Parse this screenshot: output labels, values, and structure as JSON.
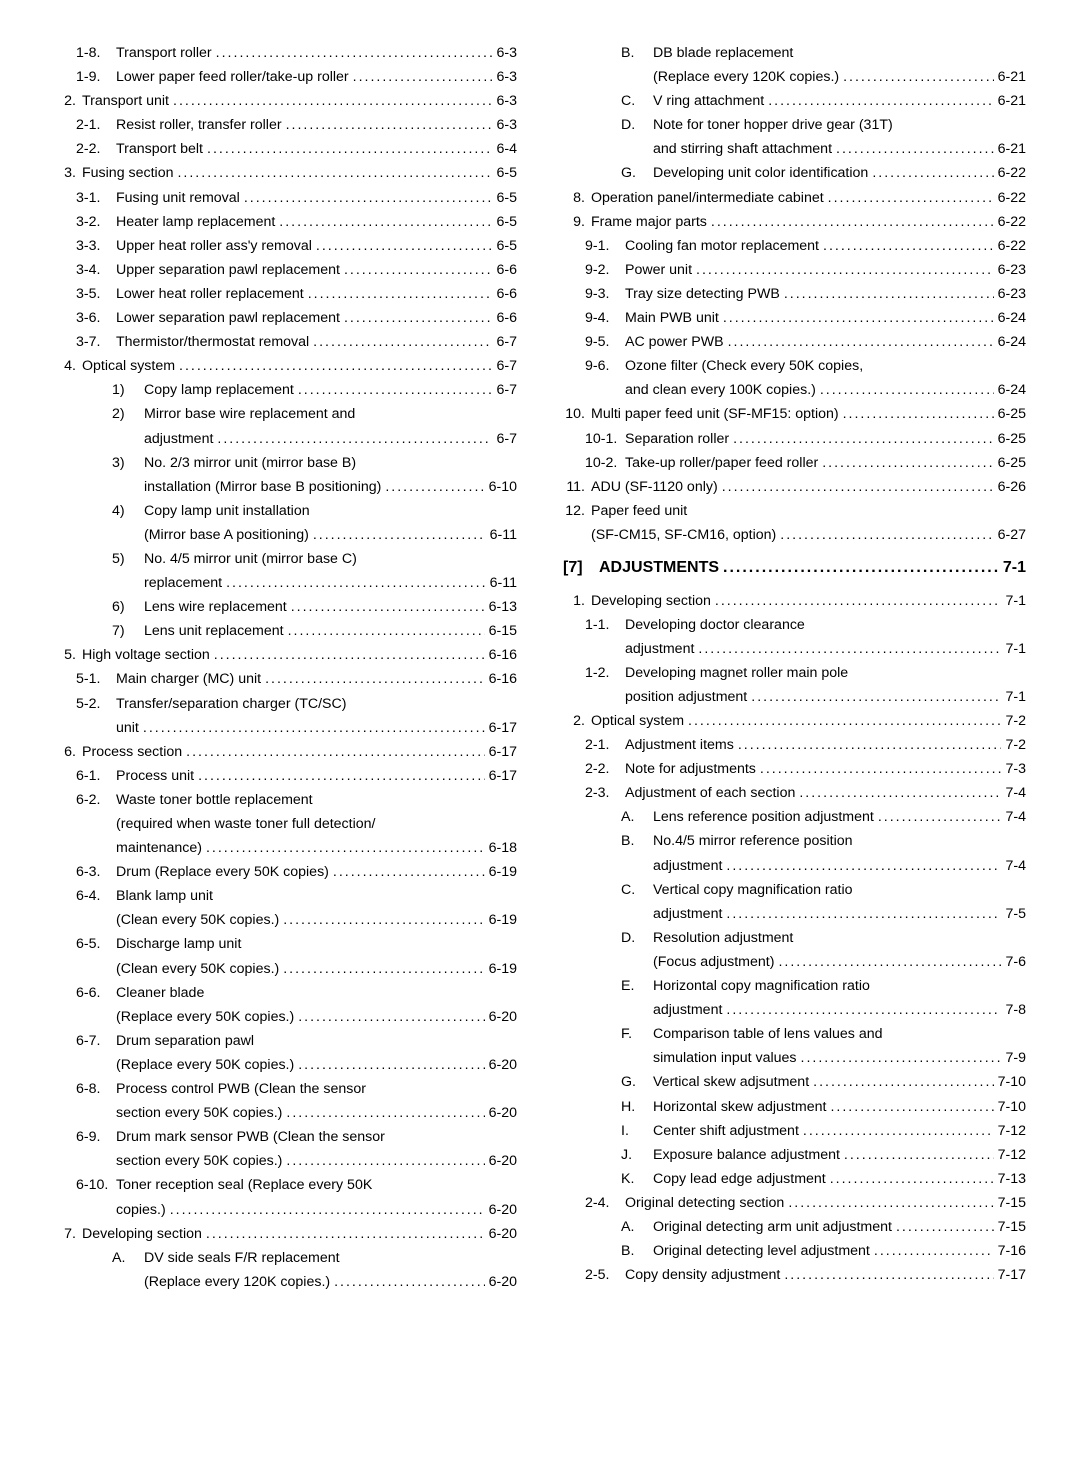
{
  "columns": [
    {
      "rows": [
        {
          "lvl": 1,
          "n": "1-8.",
          "t": "Transport roller",
          "p": "6-3"
        },
        {
          "lvl": 1,
          "n": "1-9.",
          "t": "Lower paper feed roller/take-up roller",
          "p": "6-3"
        },
        {
          "lvl": 0,
          "n": "2.",
          "t": "Transport unit",
          "p": "6-3"
        },
        {
          "lvl": 1,
          "n": "2-1.",
          "t": "Resist roller, transfer roller",
          "p": "6-3"
        },
        {
          "lvl": 1,
          "n": "2-2.",
          "t": "Transport belt",
          "p": "6-4"
        },
        {
          "lvl": 0,
          "n": "3.",
          "t": "Fusing section",
          "p": "6-5"
        },
        {
          "lvl": 1,
          "n": "3-1.",
          "t": "Fusing unit removal",
          "p": "6-5"
        },
        {
          "lvl": 1,
          "n": "3-2.",
          "t": "Heater lamp replacement",
          "p": "6-5"
        },
        {
          "lvl": 1,
          "n": "3-3.",
          "t": "Upper heat roller ass'y removal",
          "p": "6-5"
        },
        {
          "lvl": 1,
          "n": "3-4.",
          "t": "Upper separation pawl replacement",
          "p": "6-6"
        },
        {
          "lvl": 1,
          "n": "3-5.",
          "t": "Lower heat roller replacement",
          "p": "6-6"
        },
        {
          "lvl": 1,
          "n": "3-6.",
          "t": "Lower separation pawl replacement",
          "p": "6-6"
        },
        {
          "lvl": 1,
          "n": "3-7.",
          "t": "Thermistor/thermostat removal",
          "p": "6-7"
        },
        {
          "lvl": 0,
          "n": "4.",
          "t": "Optical system",
          "p": "6-7"
        },
        {
          "lvl": 2,
          "n": "1)",
          "t": "Copy lamp replacement",
          "p": "6-7"
        },
        {
          "lvl": 2,
          "n": "2)",
          "t": "Mirror base wire replacement and"
        },
        {
          "lvl": 2,
          "cont": true,
          "t": "adjustment",
          "p": "6-7"
        },
        {
          "lvl": 2,
          "n": "3)",
          "t": "No. 2/3 mirror unit (mirror base B)"
        },
        {
          "lvl": 2,
          "cont": true,
          "t": "installation (Mirror base B positioning)",
          "p": "6-10"
        },
        {
          "lvl": 2,
          "n": "4)",
          "t": "Copy lamp unit installation"
        },
        {
          "lvl": 2,
          "cont": true,
          "t": "(Mirror base A positioning)",
          "p": "6-11"
        },
        {
          "lvl": 2,
          "n": "5)",
          "t": "No. 4/5 mirror unit (mirror base C)"
        },
        {
          "lvl": 2,
          "cont": true,
          "t": "replacement",
          "p": "6-11"
        },
        {
          "lvl": 2,
          "n": "6)",
          "t": "Lens wire replacement",
          "p": "6-13"
        },
        {
          "lvl": 2,
          "n": "7)",
          "t": "Lens unit replacement",
          "p": "6-15"
        },
        {
          "lvl": 0,
          "n": "5.",
          "t": "High voltage section",
          "p": "6-16"
        },
        {
          "lvl": 1,
          "n": "5-1.",
          "t": "Main charger (MC) unit",
          "p": "6-16"
        },
        {
          "lvl": 1,
          "n": "5-2.",
          "t": "Transfer/separation charger (TC/SC)"
        },
        {
          "lvl": 1,
          "cont": true,
          "t": "unit",
          "p": "6-17"
        },
        {
          "lvl": 0,
          "n": "6.",
          "t": "Process section",
          "p": "6-17"
        },
        {
          "lvl": 1,
          "n": "6-1.",
          "t": "Process unit",
          "p": "6-17"
        },
        {
          "lvl": 1,
          "n": "6-2.",
          "t": "Waste toner bottle replacement"
        },
        {
          "lvl": 1,
          "cont": true,
          "t": "(required when waste toner full detection/"
        },
        {
          "lvl": 1,
          "cont": true,
          "t": "maintenance)",
          "p": "6-18"
        },
        {
          "lvl": 1,
          "n": "6-3.",
          "t": "Drum (Replace every 50K copies)",
          "p": "6-19"
        },
        {
          "lvl": 1,
          "n": "6-4.",
          "t": "Blank lamp unit"
        },
        {
          "lvl": 1,
          "cont": true,
          "t": "(Clean every 50K copies.)",
          "p": "6-19"
        },
        {
          "lvl": 1,
          "n": "6-5.",
          "t": "Discharge lamp unit"
        },
        {
          "lvl": 1,
          "cont": true,
          "t": "(Clean every 50K copies.)",
          "p": "6-19"
        },
        {
          "lvl": 1,
          "n": "6-6.",
          "t": "Cleaner blade"
        },
        {
          "lvl": 1,
          "cont": true,
          "t": "(Replace every 50K copies.)",
          "p": "6-20"
        },
        {
          "lvl": 1,
          "n": "6-7.",
          "t": "Drum separation pawl"
        },
        {
          "lvl": 1,
          "cont": true,
          "t": "(Replace every 50K copies.)",
          "p": "6-20"
        },
        {
          "lvl": 1,
          "n": "6-8.",
          "t": "Process control PWB (Clean the sensor"
        },
        {
          "lvl": 1,
          "cont": true,
          "t": "section every 50K copies.)",
          "p": "6-20"
        },
        {
          "lvl": 1,
          "n": "6-9.",
          "t": "Drum mark sensor PWB (Clean the sensor"
        },
        {
          "lvl": 1,
          "cont": true,
          "t": "section every 50K copies.)",
          "p": "6-20"
        },
        {
          "lvl": 1,
          "n": "6-10.",
          "t": "Toner reception seal (Replace every 50K"
        },
        {
          "lvl": 1,
          "cont": true,
          "t": "copies.)",
          "p": "6-20"
        },
        {
          "lvl": 0,
          "n": "7.",
          "t": "Developing section",
          "p": "6-20"
        },
        {
          "lvl": 2,
          "n": "A.",
          "t": "DV side seals F/R replacement"
        },
        {
          "lvl": 2,
          "cont": true,
          "t": "(Replace every 120K copies.)",
          "p": "6-20"
        }
      ]
    },
    {
      "rows": [
        {
          "lvl": 2,
          "n": "B.",
          "t": "DB blade replacement"
        },
        {
          "lvl": 2,
          "cont": true,
          "t": "(Replace every 120K copies.)",
          "p": "6-21"
        },
        {
          "lvl": 2,
          "n": "C.",
          "t": "V ring attachment",
          "p": "6-21"
        },
        {
          "lvl": 2,
          "n": "D.",
          "t": "Note for toner hopper drive gear (31T)"
        },
        {
          "lvl": 2,
          "cont": true,
          "t": "and stirring shaft attachment",
          "p": "6-21"
        },
        {
          "lvl": 2,
          "n": "G.",
          "t": "Developing unit color identification",
          "p": "6-22"
        },
        {
          "lvl": 0,
          "n": "8.",
          "t": "Operation panel/intermediate cabinet",
          "p": "6-22"
        },
        {
          "lvl": 0,
          "n": "9.",
          "t": "Frame major parts",
          "p": "6-22"
        },
        {
          "lvl": 1,
          "n": "9-1.",
          "t": "Cooling fan motor replacement",
          "p": "6-22"
        },
        {
          "lvl": 1,
          "n": "9-2.",
          "t": "Power unit",
          "p": "6-23"
        },
        {
          "lvl": 1,
          "n": "9-3.",
          "t": "Tray size detecting PWB",
          "p": "6-23"
        },
        {
          "lvl": 1,
          "n": "9-4.",
          "t": "Main PWB unit",
          "p": "6-24"
        },
        {
          "lvl": 1,
          "n": "9-5.",
          "t": "AC power PWB",
          "p": "6-24"
        },
        {
          "lvl": 1,
          "n": "9-6.",
          "t": "Ozone filter (Check every 50K copies,"
        },
        {
          "lvl": 1,
          "cont": true,
          "t": "and clean every 100K copies.)",
          "p": "6-24"
        },
        {
          "lvl": 0,
          "n": "10.",
          "t": "Multi paper feed unit (SF-MF15: option)",
          "p": "6-25"
        },
        {
          "lvl": 1,
          "n": "10-1.",
          "t": "Separation roller",
          "p": "6-25"
        },
        {
          "lvl": 1,
          "n": "10-2.",
          "t": "Take-up roller/paper feed roller",
          "p": "6-25"
        },
        {
          "lvl": 0,
          "n": "11.",
          "t": "ADU (SF-1120 only)",
          "p": "6-26"
        },
        {
          "lvl": 0,
          "n": "12.",
          "t": "Paper feed unit"
        },
        {
          "lvl": 0,
          "cont": true,
          "t": "(SF-CM15, SF-CM16, option)",
          "p": "6-27"
        },
        {
          "chapter": true,
          "n": "[7]",
          "t": "ADJUSTMENTS",
          "p": "7-1"
        },
        {
          "lvl": 0,
          "n": "1.",
          "t": "Developing section",
          "p": "7-1"
        },
        {
          "lvl": 1,
          "n": "1-1.",
          "t": "Developing doctor clearance"
        },
        {
          "lvl": 1,
          "cont": true,
          "t": "adjustment",
          "p": "7-1"
        },
        {
          "lvl": 1,
          "n": "1-2.",
          "t": "Developing magnet roller main pole"
        },
        {
          "lvl": 1,
          "cont": true,
          "t": "position adjustment",
          "p": "7-1"
        },
        {
          "lvl": 0,
          "n": "2.",
          "t": "Optical system",
          "p": "7-2"
        },
        {
          "lvl": 1,
          "n": "2-1.",
          "t": "Adjustment items",
          "p": "7-2"
        },
        {
          "lvl": 1,
          "n": "2-2.",
          "t": "Note for adjustments",
          "p": "7-3"
        },
        {
          "lvl": 1,
          "n": "2-3.",
          "t": "Adjustment of each section",
          "p": "7-4"
        },
        {
          "lvl": 2,
          "n": "A.",
          "t": "Lens reference position adjustment",
          "p": "7-4"
        },
        {
          "lvl": 2,
          "n": "B.",
          "t": "No.4/5 mirror reference position"
        },
        {
          "lvl": 2,
          "cont": true,
          "t": "adjustment",
          "p": "7-4"
        },
        {
          "lvl": 2,
          "n": "C.",
          "t": "Vertical copy magnification ratio"
        },
        {
          "lvl": 2,
          "cont": true,
          "t": "adjustment",
          "p": "7-5"
        },
        {
          "lvl": 2,
          "n": "D.",
          "t": "Resolution adjustment"
        },
        {
          "lvl": 2,
          "cont": true,
          "t": "(Focus adjustment)",
          "p": "7-6"
        },
        {
          "lvl": 2,
          "n": "E.",
          "t": "Horizontal copy magnification ratio"
        },
        {
          "lvl": 2,
          "cont": true,
          "t": "adjustment",
          "p": "7-8"
        },
        {
          "lvl": 2,
          "n": "F.",
          "t": "Comparison table of lens values and"
        },
        {
          "lvl": 2,
          "cont": true,
          "t": "simulation input values",
          "p": "7-9"
        },
        {
          "lvl": 2,
          "n": "G.",
          "t": "Vertical skew adjsutment",
          "p": "7-10"
        },
        {
          "lvl": 2,
          "n": "H.",
          "t": "Horizontal skew adjustment",
          "p": "7-10"
        },
        {
          "lvl": 2,
          "n": "I.",
          "t": "Center shift adjustment",
          "p": "7-12"
        },
        {
          "lvl": 2,
          "n": "J.",
          "t": "Exposure balance adjustment",
          "p": "7-12"
        },
        {
          "lvl": 2,
          "n": "K.",
          "t": "Copy lead edge adjustment",
          "p": "7-13"
        },
        {
          "lvl": 1,
          "n": "2-4.",
          "t": "Original detecting section",
          "p": "7-15"
        },
        {
          "lvl": 2,
          "n": "A.",
          "t": "Original detecting arm unit adjustment",
          "p": "7-15"
        },
        {
          "lvl": 2,
          "n": "B.",
          "t": "Original detecting level adjustment",
          "p": "7-16"
        },
        {
          "lvl": 1,
          "n": "2-5.",
          "t": "Copy density adjustment",
          "p": "7-17"
        }
      ]
    }
  ],
  "contPad": {
    "0": 28,
    "1": 62,
    "2": 90
  }
}
